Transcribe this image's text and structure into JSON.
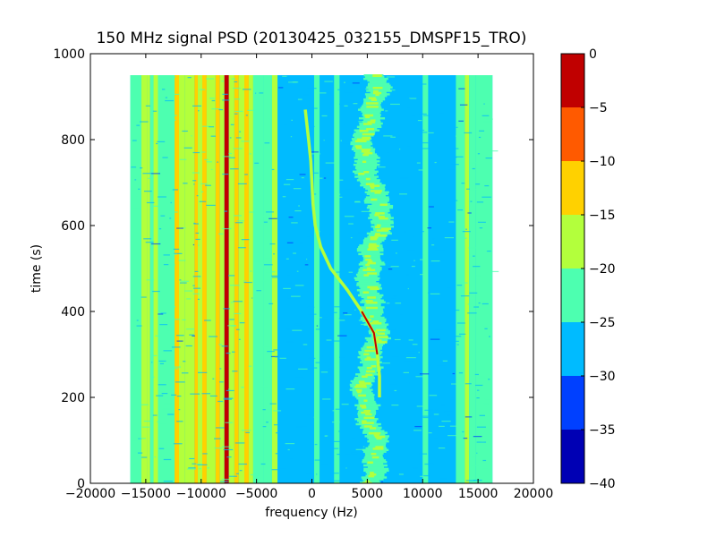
{
  "chart_data": {
    "type": "heatmap",
    "title": "150 MHz signal PSD (20130425_032155_DMSPF15_TRO)",
    "xlabel": "frequency (Hz)",
    "ylabel": "time (s)",
    "xlim": [
      -20000,
      20000
    ],
    "ylim": [
      0,
      1000
    ],
    "xticks": [
      -20000,
      -15000,
      -10000,
      -5000,
      0,
      5000,
      10000,
      15000,
      20000
    ],
    "xtick_labels": [
      "−20000",
      "−15000",
      "−10000",
      "−5000",
      "0",
      "5000",
      "10000",
      "15000",
      "20000"
    ],
    "yticks": [
      0,
      200,
      400,
      600,
      800,
      1000
    ],
    "ytick_labels": [
      "0",
      "200",
      "400",
      "600",
      "800",
      "1000"
    ],
    "data_extent": {
      "x": [
        -16400,
        16300
      ],
      "y": [
        0,
        950
      ]
    },
    "background_level": -27.5,
    "colorbar": {
      "levels": [
        -40,
        -35,
        -30,
        -25,
        -20,
        -15,
        -10,
        -5,
        0
      ],
      "tick_labels": [
        "−40",
        "−35",
        "−30",
        "−25",
        "−20",
        "−15",
        "−10",
        "−5",
        "0"
      ],
      "colors": [
        "#0000b4",
        "#0040ff",
        "#00bbff",
        "#4dffb0",
        "#b3ff3c",
        "#ffd100",
        "#ff5a00",
        "#c00000"
      ]
    },
    "steady_bands": [
      {
        "x": [
          -16400,
          -15400
        ],
        "level": -22
      },
      {
        "x": [
          -15400,
          -14900
        ],
        "level": -18
      },
      {
        "x": [
          -14900,
          -14600
        ],
        "level": -16
      },
      {
        "x": [
          -14600,
          -14300
        ],
        "level": -22
      },
      {
        "x": [
          -14300,
          -13900
        ],
        "level": -18
      },
      {
        "x": [
          -13900,
          -12400
        ],
        "level": -22
      },
      {
        "x": [
          -12400,
          -12000
        ],
        "level": -12
      },
      {
        "x": [
          -12000,
          -11500
        ],
        "level": -18
      },
      {
        "x": [
          -11500,
          -10600
        ],
        "level": -16
      },
      {
        "x": [
          -10600,
          -10300
        ],
        "level": -12
      },
      {
        "x": [
          -10300,
          -9900
        ],
        "level": -18
      },
      {
        "x": [
          -9900,
          -9500
        ],
        "level": -12
      },
      {
        "x": [
          -9500,
          -8700
        ],
        "level": -16
      },
      {
        "x": [
          -8700,
          -8300
        ],
        "level": -12
      },
      {
        "x": [
          -8300,
          -7900
        ],
        "level": -18
      },
      {
        "x": [
          -7900,
          -7500
        ],
        "level": -4
      },
      {
        "x": [
          -7500,
          -7000
        ],
        "level": -18
      },
      {
        "x": [
          -7000,
          -6600
        ],
        "level": -12
      },
      {
        "x": [
          -6600,
          -6100
        ],
        "level": -18
      },
      {
        "x": [
          -6100,
          -5700
        ],
        "level": -12
      },
      {
        "x": [
          -5700,
          -5300
        ],
        "level": -18
      },
      {
        "x": [
          -5300,
          -4400
        ],
        "level": -22
      },
      {
        "x": [
          -4400,
          -3600
        ],
        "level": -24
      },
      {
        "x": [
          -3600,
          -3100
        ],
        "level": -17
      },
      {
        "x": [
          -3100,
          200
        ],
        "level": -27.5
      },
      {
        "x": [
          200,
          700
        ],
        "level": -23
      },
      {
        "x": [
          700,
          2000
        ],
        "level": -27.5
      },
      {
        "x": [
          2000,
          2500
        ],
        "level": -23
      },
      {
        "x": [
          2500,
          10000
        ],
        "level": -27.5
      },
      {
        "x": [
          10000,
          10500
        ],
        "level": -22
      },
      {
        "x": [
          10500,
          13000
        ],
        "level": -27.5
      },
      {
        "x": [
          13000,
          13800
        ],
        "level": -22
      },
      {
        "x": [
          13800,
          14200
        ],
        "level": -18
      },
      {
        "x": [
          14200,
          14800
        ],
        "level": -22
      },
      {
        "x": [
          14800,
          16300
        ],
        "level": -24
      }
    ],
    "drifting_trace": {
      "level": -16,
      "peak_level": -5,
      "points": [
        [
          -600,
          870
        ],
        [
          -300,
          800
        ],
        [
          -100,
          750
        ],
        [
          0,
          700
        ],
        [
          100,
          650
        ],
        [
          300,
          600
        ],
        [
          800,
          550
        ],
        [
          1700,
          500
        ],
        [
          3200,
          450
        ],
        [
          4500,
          400
        ],
        [
          5600,
          350
        ],
        [
          5900,
          300
        ],
        [
          6100,
          250
        ],
        [
          6100,
          200
        ]
      ]
    },
    "wandering_band": {
      "level": -22,
      "x_range": [
        3800,
        6700
      ],
      "y_range": [
        0,
        950
      ]
    }
  }
}
